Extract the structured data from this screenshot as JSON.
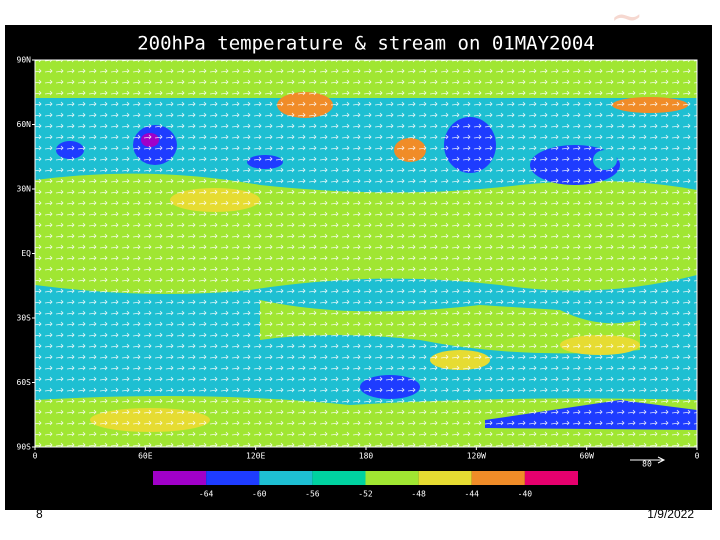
{
  "slide": {
    "title": "200hPa temperature & stream on 01MAY2004",
    "number": "8",
    "date": "1/9/2022"
  },
  "map": {
    "y_labels": [
      "90N",
      "60N",
      "30N",
      "EQ",
      "30S",
      "60S",
      "90S"
    ],
    "x_labels": [
      "0",
      "60E",
      "120E",
      "180",
      "120W",
      "60W",
      "0"
    ],
    "vector_ref": "80",
    "colorbar": {
      "labels": [
        "-64",
        "-60",
        "-56",
        "-52",
        "-48",
        "-44",
        "-40"
      ],
      "colors": [
        "#a000c8",
        "#1e3cff",
        "#1ebfd2",
        "#00d2a0",
        "#a0e632",
        "#e6dc32",
        "#f08c28",
        "#e6006e"
      ]
    }
  }
}
